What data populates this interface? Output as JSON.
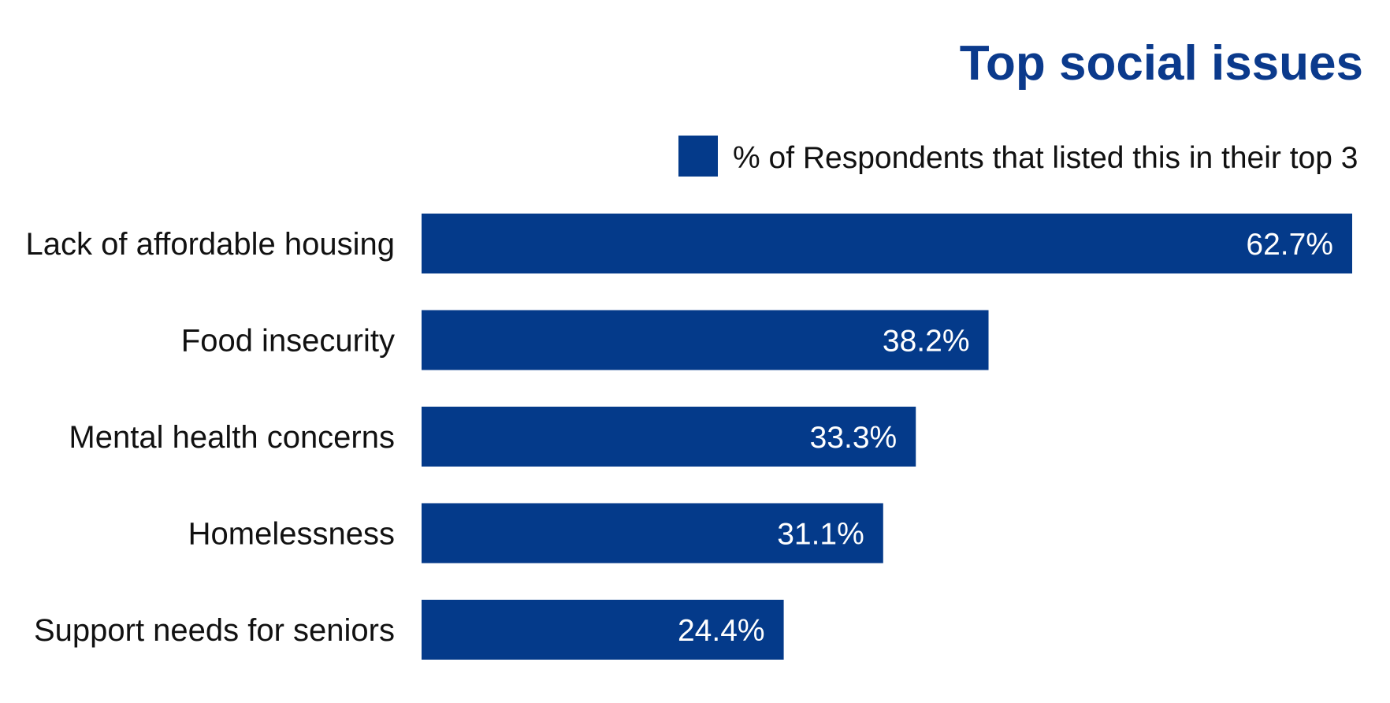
{
  "colors": {
    "bar": "#043a8a",
    "title": "#0b3a8c",
    "text": "#111111",
    "value_label": "#ffffff",
    "background": "#ffffff"
  },
  "chart_data": {
    "type": "bar",
    "orientation": "horizontal",
    "title": "Top social issues",
    "legend": {
      "placement": "top-right",
      "entries": [
        "% of Respondents that listed this in their top 3"
      ]
    },
    "categories": [
      "Lack of affordable housing",
      "Food insecurity",
      "Mental health concerns",
      "Homelessness",
      "Support needs for seniors"
    ],
    "series": [
      {
        "name": "% of Respondents that listed this in their top 3",
        "values": [
          62.7,
          38.2,
          33.3,
          31.1,
          24.4
        ],
        "labels": [
          "62.7%",
          "38.2%",
          "33.3%",
          "31.1%",
          "24.4%"
        ]
      }
    ],
    "xlim": [
      0,
      62.7
    ],
    "grid": false,
    "axes_visible": false
  }
}
